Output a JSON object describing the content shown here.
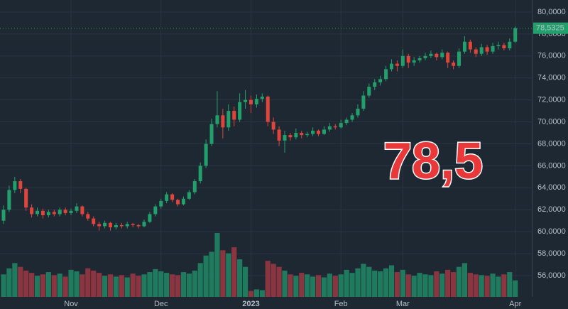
{
  "chart_data": {
    "type": "candlestick",
    "ylim": [
      54.06,
      81.1
    ],
    "yticks": [
      {
        "value": 56,
        "label": "56,0000"
      },
      {
        "value": 58,
        "label": "58,0000"
      },
      {
        "value": 60,
        "label": "60,0000"
      },
      {
        "value": 62,
        "label": "62,0000"
      },
      {
        "value": 64,
        "label": "64,0000"
      },
      {
        "value": 66,
        "label": "66,0000"
      },
      {
        "value": 68,
        "label": "68,0000"
      },
      {
        "value": 70,
        "label": "70,0000"
      },
      {
        "value": 72,
        "label": "72,0000"
      },
      {
        "value": 74,
        "label": "74,0000"
      },
      {
        "value": 76,
        "label": "76,0000"
      },
      {
        "value": 78,
        "label": "78,0000"
      },
      {
        "value": 80,
        "label": "80,0000"
      }
    ],
    "grid": true,
    "up_color": "#22a06b",
    "down_color": "#e0453b",
    "volume_up_color": "#1f7a5e",
    "volume_down_color": "#8a3540",
    "price_line": {
      "value": 78.5325,
      "label": "78,5325"
    },
    "annotation": "78,5",
    "categories": [
      null,
      null,
      null,
      null,
      null,
      null,
      null,
      null,
      null,
      null,
      null,
      null,
      "Nov",
      null,
      null,
      null,
      null,
      null,
      null,
      null,
      null,
      null,
      null,
      null,
      null,
      null,
      null,
      null,
      "Dec",
      null,
      null,
      null,
      null,
      null,
      null,
      null,
      null,
      null,
      null,
      null,
      null,
      null,
      null,
      null,
      "2023",
      null,
      null,
      null,
      null,
      null,
      null,
      null,
      null,
      null,
      null,
      null,
      null,
      null,
      null,
      null,
      "Feb",
      null,
      null,
      null,
      null,
      null,
      null,
      null,
      null,
      null,
      null,
      "Mar",
      null,
      null,
      null,
      null,
      null,
      null,
      null,
      null,
      null,
      null,
      null,
      null,
      null,
      null,
      null,
      null,
      null,
      null,
      null,
      "Apr"
    ],
    "candles": [
      [
        61.0,
        62.4,
        60.7,
        62.0
      ],
      [
        62.0,
        64.2,
        61.8,
        63.8
      ],
      [
        63.8,
        65.0,
        63.5,
        64.6
      ],
      [
        64.6,
        64.8,
        63.5,
        63.9
      ],
      [
        63.9,
        64.0,
        61.9,
        62.2
      ],
      [
        62.2,
        62.5,
        61.3,
        61.6
      ],
      [
        61.6,
        62.2,
        61.4,
        61.9
      ],
      [
        61.9,
        62.1,
        61.2,
        61.5
      ],
      [
        61.5,
        62.0,
        61.3,
        61.8
      ],
      [
        61.8,
        62.0,
        61.4,
        61.6
      ],
      [
        61.6,
        62.2,
        61.4,
        62.0
      ],
      [
        62.0,
        62.2,
        61.5,
        61.7
      ],
      [
        61.7,
        62.1,
        61.5,
        61.9
      ],
      [
        61.9,
        62.6,
        61.7,
        62.3
      ],
      [
        62.3,
        62.4,
        61.4,
        61.6
      ],
      [
        61.6,
        61.8,
        61.0,
        61.2
      ],
      [
        61.2,
        61.4,
        60.5,
        60.7
      ],
      [
        60.7,
        60.9,
        60.1,
        60.5
      ],
      [
        60.5,
        61.0,
        60.3,
        60.8
      ],
      [
        60.8,
        60.9,
        60.1,
        60.4
      ],
      [
        60.4,
        60.8,
        60.2,
        60.6
      ],
      [
        60.6,
        60.8,
        60.3,
        60.5
      ],
      [
        60.5,
        60.9,
        60.3,
        60.7
      ],
      [
        60.7,
        60.8,
        60.4,
        60.6
      ],
      [
        60.6,
        60.7,
        60.3,
        60.5
      ],
      [
        60.5,
        61.1,
        60.4,
        60.9
      ],
      [
        60.9,
        61.8,
        60.8,
        61.6
      ],
      [
        61.6,
        62.5,
        61.4,
        62.3
      ],
      [
        62.3,
        63.0,
        62.1,
        62.8
      ],
      [
        62.8,
        63.6,
        62.6,
        63.4
      ],
      [
        63.4,
        63.5,
        62.7,
        62.9
      ],
      [
        62.9,
        63.0,
        62.3,
        62.5
      ],
      [
        62.5,
        63.2,
        62.4,
        63.0
      ],
      [
        63.0,
        63.8,
        62.9,
        63.6
      ],
      [
        63.6,
        64.8,
        63.4,
        64.6
      ],
      [
        64.6,
        66.3,
        64.4,
        66.0
      ],
      [
        66.0,
        68.4,
        65.8,
        68.0
      ],
      [
        68.0,
        70.3,
        67.8,
        69.8
      ],
      [
        69.8,
        72.8,
        69.5,
        70.6
      ],
      [
        70.6,
        71.2,
        68.5,
        69.5
      ],
      [
        69.5,
        71.6,
        69.2,
        71.0
      ],
      [
        71.0,
        71.4,
        69.6,
        70.2
      ],
      [
        70.2,
        72.6,
        70.0,
        71.8
      ],
      [
        71.8,
        72.9,
        71.2,
        72.0
      ],
      [
        72.0,
        72.4,
        70.8,
        71.6
      ],
      [
        71.6,
        72.5,
        71.3,
        72.1
      ],
      [
        72.1,
        72.6,
        71.8,
        72.3
      ],
      [
        72.3,
        72.4,
        69.6,
        70.0
      ],
      [
        70.0,
        70.4,
        68.9,
        69.3
      ],
      [
        69.3,
        69.6,
        67.8,
        68.3
      ],
      [
        68.3,
        69.2,
        67.2,
        68.8
      ],
      [
        68.8,
        69.0,
        68.3,
        68.6
      ],
      [
        68.6,
        69.4,
        68.4,
        69.0
      ],
      [
        69.0,
        69.2,
        68.5,
        68.8
      ],
      [
        68.8,
        69.1,
        68.6,
        68.9
      ],
      [
        68.9,
        69.5,
        68.7,
        69.2
      ],
      [
        69.2,
        69.3,
        68.7,
        68.9
      ],
      [
        68.9,
        69.6,
        68.8,
        69.3
      ],
      [
        69.3,
        69.9,
        69.1,
        69.6
      ],
      [
        69.6,
        69.8,
        69.3,
        69.5
      ],
      [
        69.5,
        70.2,
        69.4,
        69.9
      ],
      [
        69.9,
        70.4,
        69.7,
        70.2
      ],
      [
        70.2,
        70.8,
        70.0,
        70.6
      ],
      [
        70.6,
        71.6,
        70.4,
        71.2
      ],
      [
        71.2,
        72.8,
        71.0,
        72.4
      ],
      [
        72.4,
        73.5,
        72.2,
        73.2
      ],
      [
        73.2,
        73.9,
        72.9,
        73.6
      ],
      [
        73.6,
        74.2,
        73.3,
        73.9
      ],
      [
        73.9,
        75.1,
        73.7,
        74.8
      ],
      [
        74.8,
        75.7,
        74.6,
        75.3
      ],
      [
        75.3,
        75.6,
        74.6,
        75.1
      ],
      [
        75.1,
        76.6,
        74.9,
        76.0
      ],
      [
        76.0,
        76.2,
        74.9,
        75.4
      ],
      [
        75.4,
        75.9,
        75.1,
        75.6
      ],
      [
        75.6,
        76.0,
        75.4,
        75.8
      ],
      [
        75.8,
        76.3,
        75.6,
        76.0
      ],
      [
        76.0,
        76.5,
        75.8,
        76.2
      ],
      [
        76.2,
        76.3,
        75.6,
        75.9
      ],
      [
        75.9,
        76.6,
        75.7,
        76.3
      ],
      [
        76.3,
        76.4,
        74.9,
        75.4
      ],
      [
        75.4,
        75.6,
        74.8,
        75.1
      ],
      [
        75.1,
        76.7,
        74.9,
        76.4
      ],
      [
        76.4,
        77.8,
        76.2,
        77.3
      ],
      [
        77.3,
        77.5,
        76.3,
        76.6
      ],
      [
        76.6,
        76.8,
        75.9,
        76.2
      ],
      [
        76.2,
        77.1,
        76.0,
        76.8
      ],
      [
        76.8,
        77.0,
        76.1,
        76.4
      ],
      [
        76.4,
        77.2,
        76.2,
        76.9
      ],
      [
        76.9,
        77.3,
        76.6,
        77.0
      ],
      [
        77.0,
        77.2,
        76.5,
        76.7
      ],
      [
        76.7,
        77.6,
        76.5,
        77.3
      ],
      [
        77.3,
        78.7,
        77.2,
        78.53
      ]
    ],
    "volumes": [
      30,
      38,
      45,
      40,
      35,
      32,
      28,
      30,
      33,
      29,
      31,
      27,
      36,
      34,
      30,
      38,
      35,
      32,
      28,
      30,
      27,
      29,
      26,
      31,
      28,
      30,
      33,
      37,
      34,
      32,
      30,
      29,
      33,
      31,
      35,
      45,
      55,
      60,
      85,
      62,
      58,
      66,
      50,
      40,
      8,
      10,
      9,
      48,
      44,
      40,
      35,
      30,
      28,
      32,
      30,
      27,
      29,
      26,
      31,
      28,
      30,
      36,
      32,
      38,
      44,
      40,
      35,
      34,
      38,
      42,
      33,
      36,
      30,
      28,
      32,
      30,
      29,
      34,
      31,
      36,
      33,
      40,
      45,
      32,
      30,
      29,
      28,
      31,
      27,
      30,
      33,
      22
    ]
  }
}
